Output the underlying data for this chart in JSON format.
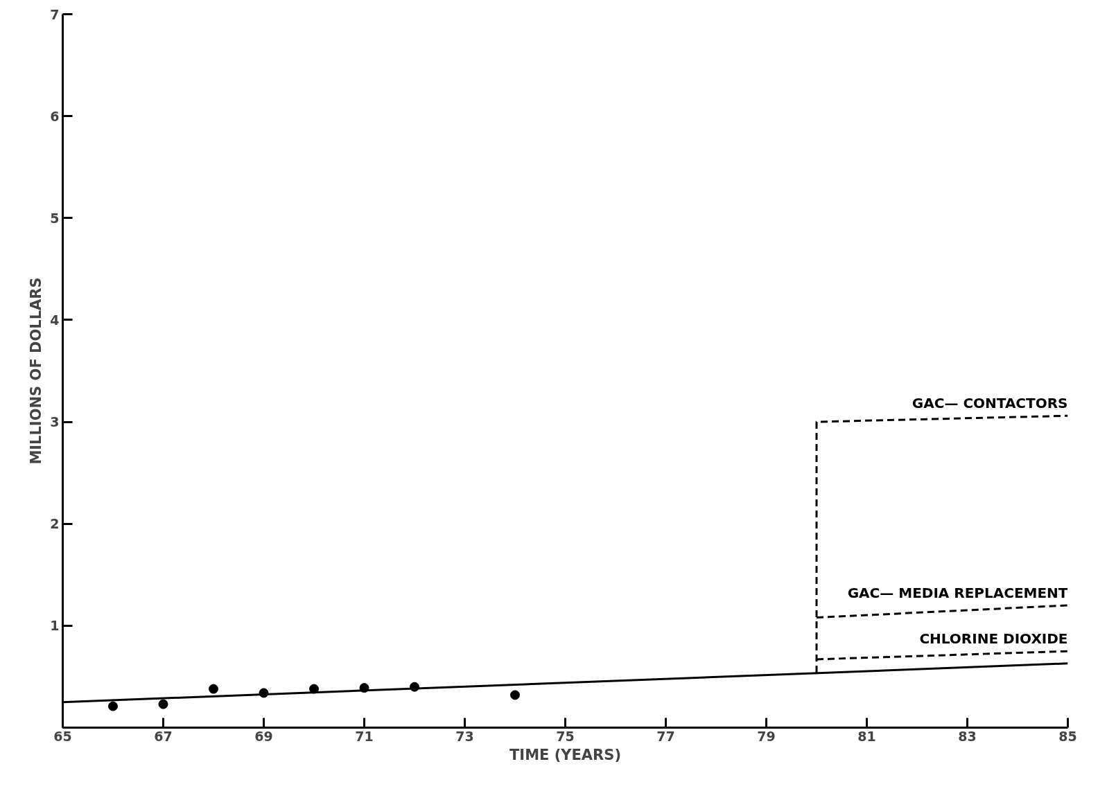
{
  "chart_data": {
    "type": "line",
    "xlabel": "TIME (YEARS)",
    "ylabel": "MILLIONS OF DOLLARS",
    "xlim": [
      65,
      85
    ],
    "ylim": [
      0,
      7
    ],
    "xticks": [
      65,
      67,
      69,
      71,
      73,
      75,
      77,
      79,
      81,
      83,
      85
    ],
    "yticks": [
      {
        "value": 0,
        "label": null
      },
      1,
      2,
      3,
      4,
      5,
      6,
      7
    ],
    "grid": false,
    "series": [
      {
        "type": "scatter",
        "marker": "circle",
        "color": "#000000",
        "x": [
          66,
          67,
          68,
          69,
          70,
          71,
          72,
          74
        ],
        "values": [
          0.21,
          0.23,
          0.38,
          0.34,
          0.38,
          0.39,
          0.4,
          0.32
        ]
      },
      {
        "line_style": "solid",
        "color": "#000000",
        "x": [
          65,
          85
        ],
        "values": [
          0.25,
          0.63
        ]
      },
      {
        "line_style": "dashed",
        "name": "GAC— CONTACTORS",
        "color": "#000000",
        "x": [
          80,
          80,
          85
        ],
        "values": [
          0.54,
          3.0,
          3.06
        ]
      },
      {
        "line_style": "dashed",
        "name": "GAC— MEDIA REPLACEMENT",
        "color": "#000000",
        "x": [
          80,
          85
        ],
        "values": [
          1.08,
          1.2
        ]
      },
      {
        "line_style": "dashed",
        "name": "CHLORINE DIOXIDE",
        "color": "#000000",
        "x": [
          80,
          85
        ],
        "values": [
          0.67,
          0.75
        ]
      }
    ]
  }
}
